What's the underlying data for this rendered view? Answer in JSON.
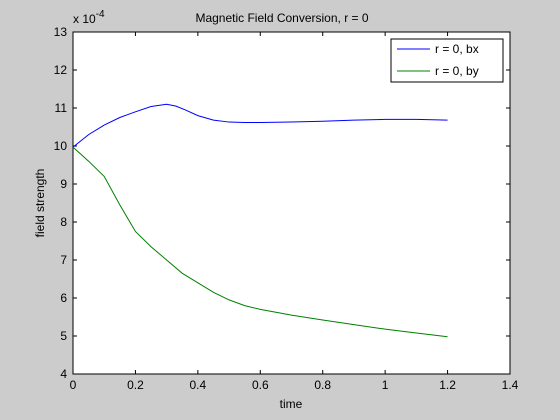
{
  "chart_data": {
    "type": "line",
    "title": "Magnetic Field Conversion, r = 0",
    "xlabel": "time",
    "ylabel": "field strength",
    "y_exponent": {
      "base": "x 10",
      "power": "-4"
    },
    "xlim": [
      0,
      1.4
    ],
    "ylim": [
      4,
      13
    ],
    "xticks": [
      "0",
      "0.2",
      "0.4",
      "0.6",
      "0.8",
      "1",
      "1.2",
      "1.4"
    ],
    "xtick_values": [
      0,
      0.2,
      0.4,
      0.6,
      0.8,
      1.0,
      1.2,
      1.4
    ],
    "yticks": [
      "4",
      "5",
      "6",
      "7",
      "8",
      "9",
      "10",
      "11",
      "12",
      "13"
    ],
    "ytick_values": [
      4,
      5,
      6,
      7,
      8,
      9,
      10,
      11,
      12,
      13
    ],
    "grid": false,
    "legend_position": "top-right",
    "series": [
      {
        "name": "r = 0, bx",
        "color": "#0000ff",
        "x": [
          0,
          0.05,
          0.1,
          0.15,
          0.2,
          0.25,
          0.3,
          0.33,
          0.36,
          0.4,
          0.45,
          0.5,
          0.55,
          0.6,
          0.7,
          0.8,
          0.9,
          1.0,
          1.1,
          1.2
        ],
        "y": [
          9.97,
          10.3,
          10.55,
          10.75,
          10.9,
          11.04,
          11.1,
          11.05,
          10.95,
          10.8,
          10.68,
          10.63,
          10.62,
          10.62,
          10.63,
          10.65,
          10.68,
          10.7,
          10.7,
          10.68
        ]
      },
      {
        "name": "r = 0, by",
        "color": "#008000",
        "x": [
          0,
          0.05,
          0.1,
          0.15,
          0.2,
          0.25,
          0.3,
          0.35,
          0.4,
          0.45,
          0.5,
          0.55,
          0.6,
          0.7,
          0.8,
          0.9,
          1.0,
          1.1,
          1.2
        ],
        "y": [
          9.97,
          9.6,
          9.2,
          8.45,
          7.75,
          7.35,
          7.0,
          6.65,
          6.4,
          6.15,
          5.95,
          5.8,
          5.7,
          5.55,
          5.42,
          5.3,
          5.18,
          5.08,
          4.98
        ]
      }
    ]
  }
}
